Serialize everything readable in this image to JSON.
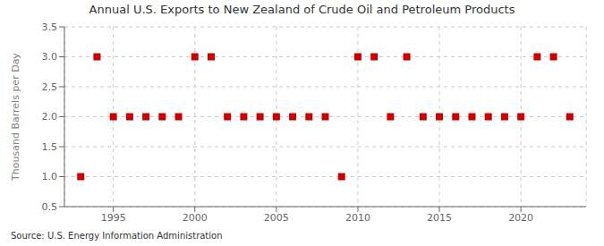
{
  "chart_data": {
    "type": "scatter",
    "title": "Annual U.S. Exports to New Zealand of Crude Oil and Petroleum Products",
    "y_label": "Thousand Barrels per Day",
    "annotations": [
      "Source: U.S. Energy Information Administration"
    ],
    "x": [
      1993,
      1994,
      1995,
      1996,
      1997,
      1998,
      1999,
      2000,
      2001,
      2002,
      2003,
      2004,
      2005,
      2006,
      2007,
      2008,
      2009,
      2010,
      2011,
      2012,
      2013,
      2014,
      2015,
      2016,
      2017,
      2018,
      2019,
      2020,
      2021,
      2022,
      2023
    ],
    "values": [
      1,
      3,
      2,
      2,
      2,
      2,
      2,
      3,
      3,
      2,
      2,
      2,
      2,
      2,
      2,
      2,
      1,
      3,
      3,
      2,
      3,
      2,
      2,
      2,
      2,
      2,
      2,
      2,
      3,
      3,
      2
    ],
    "color": "#cc0000",
    "marker": "square",
    "xlim": [
      1992,
      2024
    ],
    "xticks": [
      1995,
      2000,
      2005,
      2010,
      2015,
      2020
    ],
    "ylim": [
      0.5,
      3.5
    ],
    "yticks": [
      0.5,
      {
        "value": 1,
        "label": "1.0"
      },
      1.5,
      {
        "value": 2,
        "label": "2.0"
      },
      2.5,
      {
        "value": 3,
        "label": "3.0"
      },
      3.5
    ],
    "grid": true
  }
}
